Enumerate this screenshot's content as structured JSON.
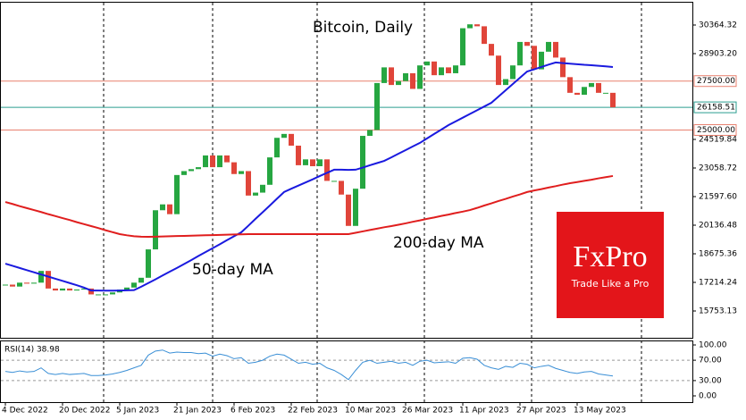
{
  "chart_data": {
    "type": "candlestick",
    "title": "Bitcoin, Daily",
    "xticks": [
      {
        "value": 0,
        "label": "4 Dec 2022"
      },
      {
        "value": 8,
        "label": "20 Dec 2022"
      },
      {
        "value": 16,
        "label": "5 Jan 2023"
      },
      {
        "value": 24,
        "label": "21 Jan 2023"
      },
      {
        "value": 32,
        "label": "6 Feb 2023"
      },
      {
        "value": 40,
        "label": "22 Feb 2023"
      },
      {
        "value": 48,
        "label": "10 Mar 2023"
      },
      {
        "value": 56,
        "label": "26 Mar 2023"
      },
      {
        "value": 64,
        "label": "11 Apr 2023"
      },
      {
        "value": 72,
        "label": "27 Apr 2023"
      },
      {
        "value": 80,
        "label": "13 May 2023"
      }
    ],
    "ylim": [
      14383,
      31551
    ],
    "yticks": [
      30364.32,
      {
        "value": 28903.2,
        "label": "28903.20"
      },
      24519.84,
      23058.72,
      {
        "value": 21597.6,
        "label": "21597.60"
      },
      20136.48,
      18675.36,
      17214.24,
      15753.13
    ],
    "levels": [
      {
        "value": 27500,
        "label": "27500.00",
        "color": "#e8806f"
      },
      {
        "value": 26158.51,
        "label": "26158.51",
        "color": "#2a9d8f"
      },
      {
        "value": 25000,
        "label": "25000.00",
        "color": "#e8806f"
      }
    ],
    "up_color": "#26a641",
    "down_color": "#e0453a",
    "close": [
      17100,
      17000,
      17200,
      17150,
      17200,
      17800,
      16900,
      16800,
      16900,
      16800,
      16850,
      16900,
      16600,
      16600,
      16600,
      16700,
      16850,
      16950,
      17200,
      17450,
      18900,
      20900,
      21200,
      20700,
      22700,
      22900,
      23000,
      23100,
      23700,
      23100,
      23700,
      23350,
      22750,
      22900,
      21650,
      21800,
      22200,
      23600,
      24600,
      24800,
      24200,
      23200,
      23500,
      23150,
      23500,
      22400,
      22400,
      21700,
      20100,
      22000,
      24700,
      25000,
      27400,
      28200,
      27300,
      27500,
      27900,
      27100,
      28300,
      28500,
      27800,
      28200,
      27900,
      28300,
      30200,
      30400,
      30300,
      29400,
      28800,
      27300,
      27600,
      28300,
      29500,
      29300,
      28100,
      29000,
      29500,
      28700,
      27700,
      26900,
      26800,
      27200,
      27400,
      26900,
      26900,
      26158.51
    ],
    "series": [
      {
        "name": "50-day MA",
        "color": "#1a1adf",
        "values": [
          18170,
          18060,
          17950,
          17840,
          17730,
          17620,
          17510,
          17400,
          17290,
          17180,
          17070,
          16950,
          16800,
          16800,
          16790,
          16790,
          16800,
          16810,
          16820,
          16990,
          17180,
          17370,
          17570,
          17760,
          17950,
          18150,
          18350,
          18560,
          18760,
          18960,
          19160,
          19370,
          19570,
          19770,
          20110,
          20460,
          20800,
          21140,
          21490,
          21830,
          22000,
          22160,
          22320,
          22480,
          22650,
          22810,
          22970,
          22970,
          22960,
          22970,
          23080,
          23200,
          23310,
          23420,
          23600,
          23790,
          23970,
          24160,
          24340,
          24570,
          24800,
          25020,
          25250,
          25440,
          25630,
          25820,
          26010,
          26200,
          26390,
          26710,
          27030,
          27350,
          27670,
          27990,
          28100,
          28220,
          28340,
          28450,
          28420,
          28390,
          28360,
          28330,
          28310,
          28280,
          28250,
          28220
        ]
      },
      {
        "name": "200-day MA",
        "color": "#e01e1e",
        "values": [
          21320,
          21220,
          21110,
          21010,
          20910,
          20810,
          20700,
          20600,
          20500,
          20400,
          20290,
          20190,
          20090,
          19990,
          19880,
          19780,
          19680,
          19620,
          19570,
          19550,
          19540,
          19550,
          19560,
          19570,
          19580,
          19590,
          19600,
          19610,
          19620,
          19630,
          19640,
          19650,
          19660,
          19670,
          19680,
          19680,
          19680,
          19680,
          19680,
          19680,
          19680,
          19680,
          19680,
          19680,
          19680,
          19680,
          19680,
          19680,
          19680,
          19750,
          19820,
          19890,
          19960,
          20030,
          20090,
          20160,
          20230,
          20310,
          20380,
          20460,
          20530,
          20610,
          20680,
          20760,
          20830,
          20910,
          21020,
          21140,
          21250,
          21370,
          21480,
          21600,
          21710,
          21830,
          21910,
          21980,
          22060,
          22130,
          22210,
          22280,
          22340,
          22400,
          22460,
          22530,
          22590,
          22650
        ]
      }
    ],
    "rsi": {
      "label": "RSI(14) 38.98",
      "color": "#3a8fd6",
      "ylim": [
        -12.3,
        108.8
      ],
      "yticks": [
        {
          "value": 100,
          "label": "100.00"
        },
        {
          "value": 70,
          "label": "70.00"
        },
        {
          "value": 30,
          "label": "30.00"
        },
        {
          "value": 0,
          "label": "0.00"
        }
      ],
      "values": [
        48,
        46,
        49,
        47,
        48,
        55,
        44,
        42,
        44,
        42,
        43,
        44,
        40,
        40,
        41,
        43,
        46,
        50,
        55,
        60,
        80,
        88,
        90,
        84,
        86,
        85,
        85,
        83,
        84,
        78,
        82,
        79,
        73,
        75,
        64,
        66,
        70,
        78,
        82,
        80,
        72,
        64,
        66,
        62,
        64,
        55,
        50,
        42,
        32,
        50,
        66,
        70,
        64,
        66,
        68,
        64,
        66,
        60,
        68,
        70,
        65,
        66,
        67,
        64,
        74,
        75,
        72,
        60,
        55,
        52,
        58,
        56,
        64,
        62,
        55,
        58,
        60,
        54,
        50,
        46,
        44,
        47,
        48,
        43,
        41,
        38.98
      ]
    }
  },
  "logo": {
    "name": "FxPro",
    "tagline": "Trade Like a Pro"
  }
}
